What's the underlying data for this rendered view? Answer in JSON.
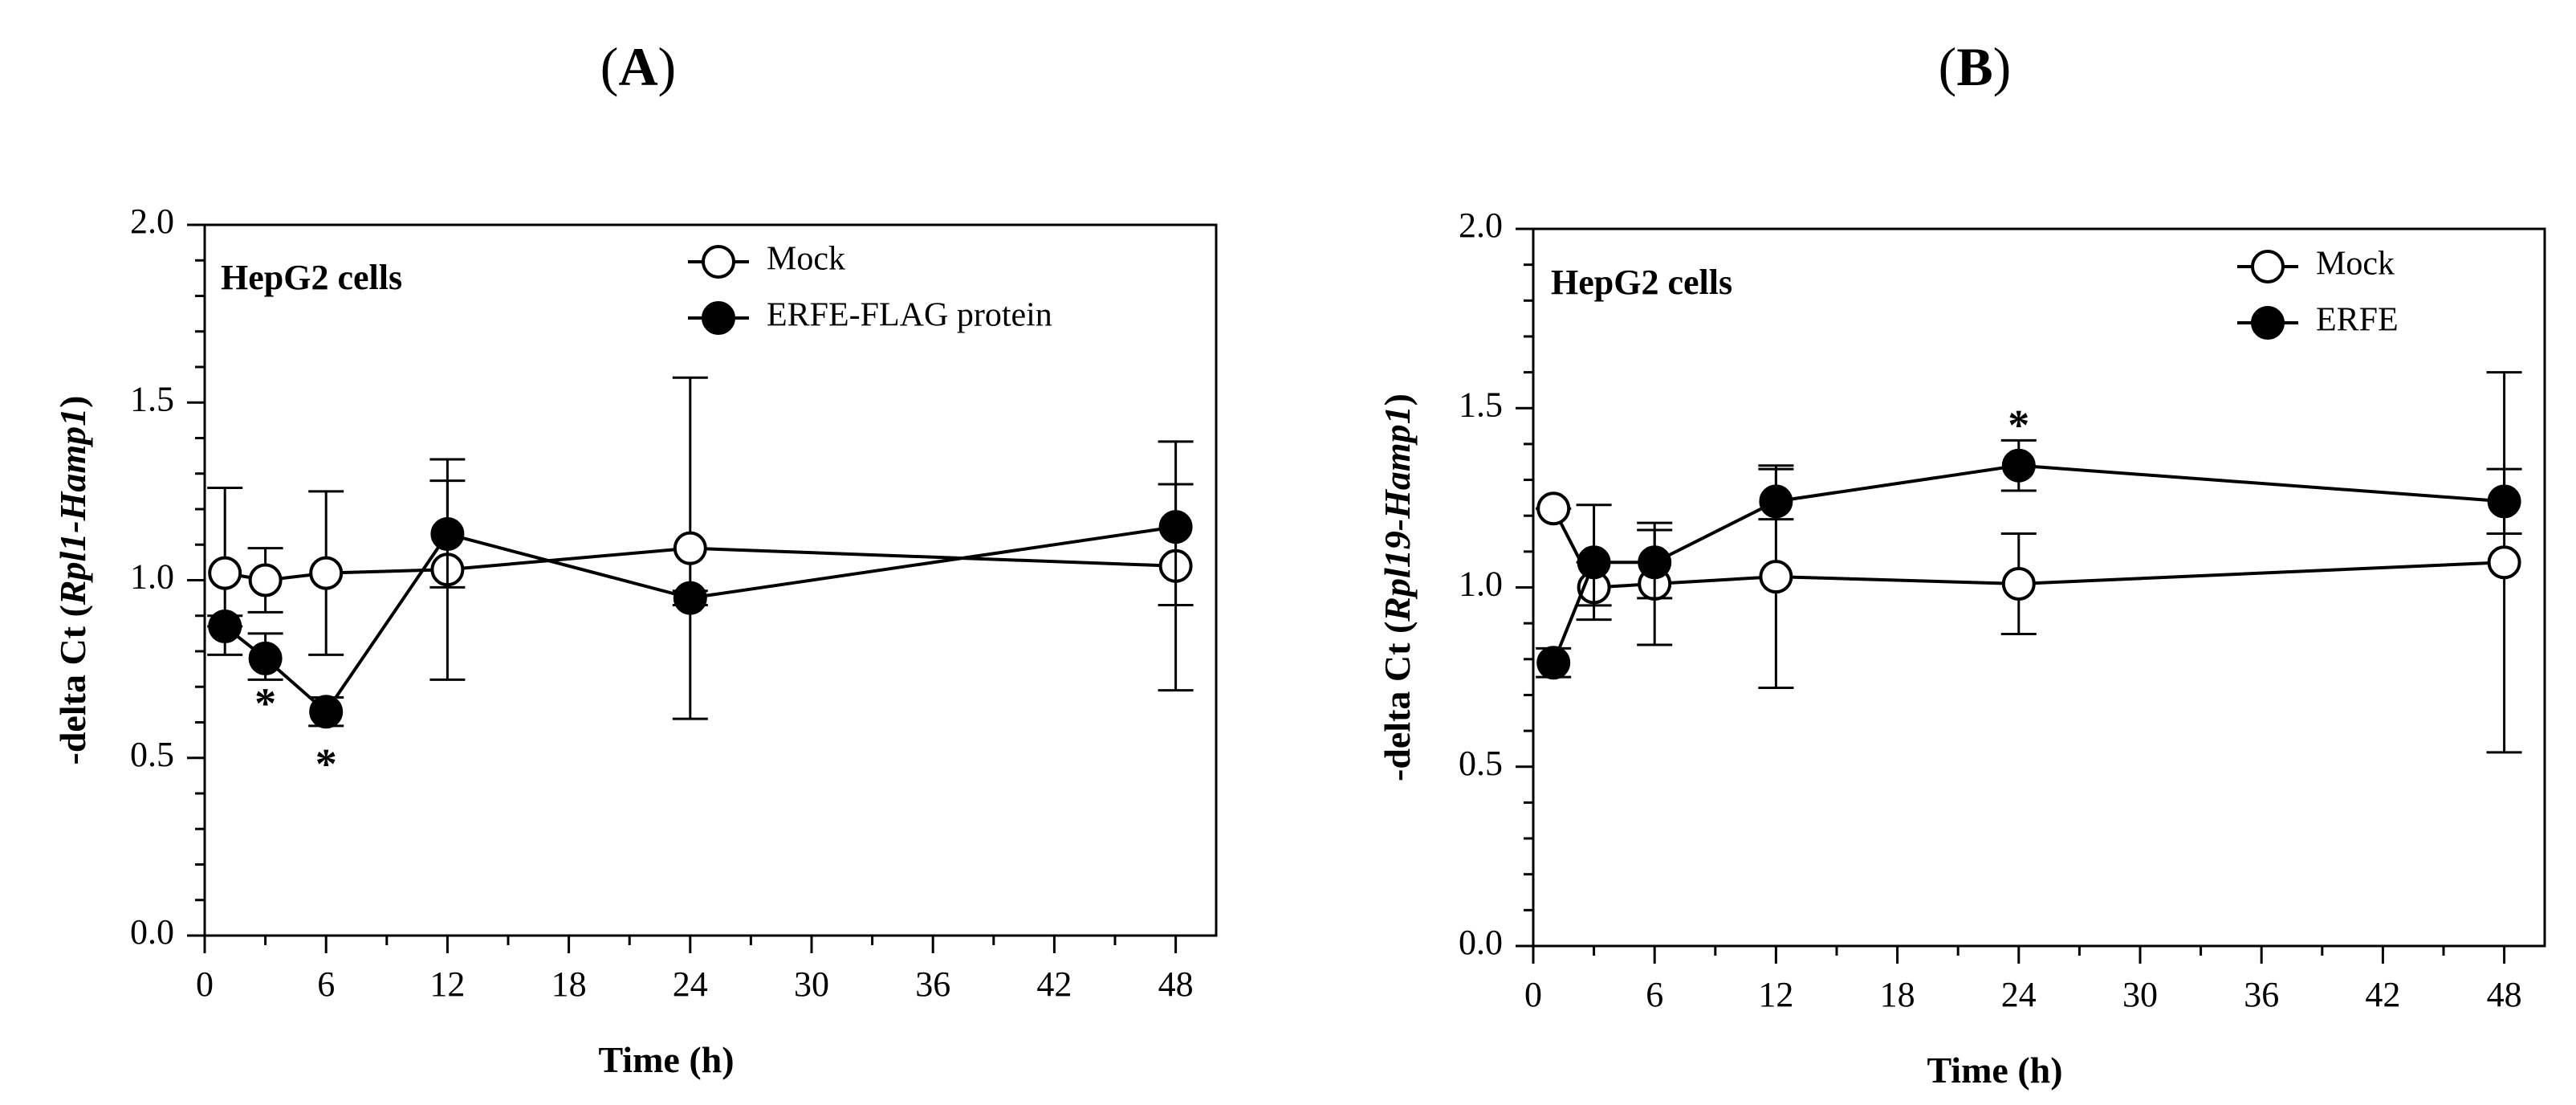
{
  "chart_data": [
    {
      "type": "line",
      "panel_label": "A",
      "annotation": "HepG2 cells",
      "xlabel": "Time (h)",
      "ylabel_prefix": "-delta Ct (",
      "ylabel_italic": "Rpl1-Hamp1",
      "ylabel_suffix": ")",
      "xlim": [
        0,
        50
      ],
      "ylim": [
        0.0,
        2.0
      ],
      "x_ticks": [
        0,
        6,
        12,
        18,
        24,
        30,
        36,
        42,
        48
      ],
      "x_tick_labels": [
        "0",
        "6",
        "12",
        "18",
        "24",
        "30",
        "36",
        "42",
        "48"
      ],
      "y_ticks": [
        0.0,
        0.5,
        1.0,
        1.5,
        2.0
      ],
      "y_tick_labels": [
        "0.0",
        "0.5",
        "1.0",
        "1.5",
        "2.0"
      ],
      "legend_position": "top-right",
      "series": [
        {
          "name": "Mock",
          "marker": "open-circle",
          "x": [
            1,
            3,
            6,
            12,
            24,
            48
          ],
          "y": [
            1.02,
            1.0,
            1.02,
            1.03,
            1.09,
            1.04
          ],
          "err_low": [
            0.87,
            0.91,
            0.79,
            0.98,
            0.61,
            0.69
          ],
          "err_high": [
            1.26,
            1.09,
            1.25,
            1.28,
            1.57,
            1.27
          ]
        },
        {
          "name": "ERFE-FLAG protein",
          "marker": "filled-circle",
          "x": [
            1,
            3,
            6,
            12,
            24,
            48
          ],
          "y": [
            0.87,
            0.78,
            0.63,
            1.13,
            0.95,
            1.15
          ],
          "err_low": [
            0.79,
            0.72,
            0.59,
            0.72,
            0.93,
            0.93
          ],
          "err_high": [
            0.9,
            0.85,
            0.67,
            1.34,
            0.97,
            1.39
          ]
        }
      ],
      "significance": [
        {
          "x": 3,
          "y": 0.64,
          "label": "*"
        },
        {
          "x": 6,
          "y": 0.47,
          "label": "*"
        }
      ]
    },
    {
      "type": "line",
      "panel_label": "B",
      "annotation": "HepG2 cells",
      "xlabel": "Time (h)",
      "ylabel_prefix": "-delta Ct (",
      "ylabel_italic": "Rpl19-Hamp1",
      "ylabel_suffix": ")",
      "xlim": [
        0,
        50
      ],
      "ylim": [
        0.0,
        2.0
      ],
      "x_ticks": [
        0,
        6,
        12,
        18,
        24,
        30,
        36,
        42,
        48
      ],
      "x_tick_labels": [
        "0",
        "6",
        "12",
        "18",
        "24",
        "30",
        "36",
        "42",
        "48"
      ],
      "y_ticks": [
        0.0,
        0.5,
        1.0,
        1.5,
        2.0
      ],
      "y_tick_labels": [
        "0.0",
        "0.5",
        "1.0",
        "1.5",
        "2.0"
      ],
      "legend_position": "top-right",
      "series": [
        {
          "name": "Mock",
          "marker": "open-circle",
          "x": [
            1,
            3,
            6,
            12,
            24,
            48
          ],
          "y": [
            1.22,
            1.0,
            1.01,
            1.03,
            1.01,
            1.07
          ],
          "err_low": [
            1.22,
            0.91,
            0.84,
            0.72,
            0.87,
            0.54
          ],
          "err_high": [
            1.22,
            1.07,
            1.18,
            1.33,
            1.15,
            1.6
          ]
        },
        {
          "name": "ERFE",
          "marker": "filled-circle",
          "x": [
            1,
            3,
            6,
            12,
            24,
            48
          ],
          "y": [
            0.79,
            1.07,
            1.07,
            1.24,
            1.34,
            1.24
          ],
          "err_low": [
            0.75,
            0.95,
            0.97,
            1.19,
            1.27,
            1.15
          ],
          "err_high": [
            0.83,
            1.23,
            1.16,
            1.34,
            1.41,
            1.33
          ]
        }
      ],
      "significance": [
        {
          "x": 24,
          "y": 1.44,
          "label": "*"
        }
      ]
    }
  ]
}
